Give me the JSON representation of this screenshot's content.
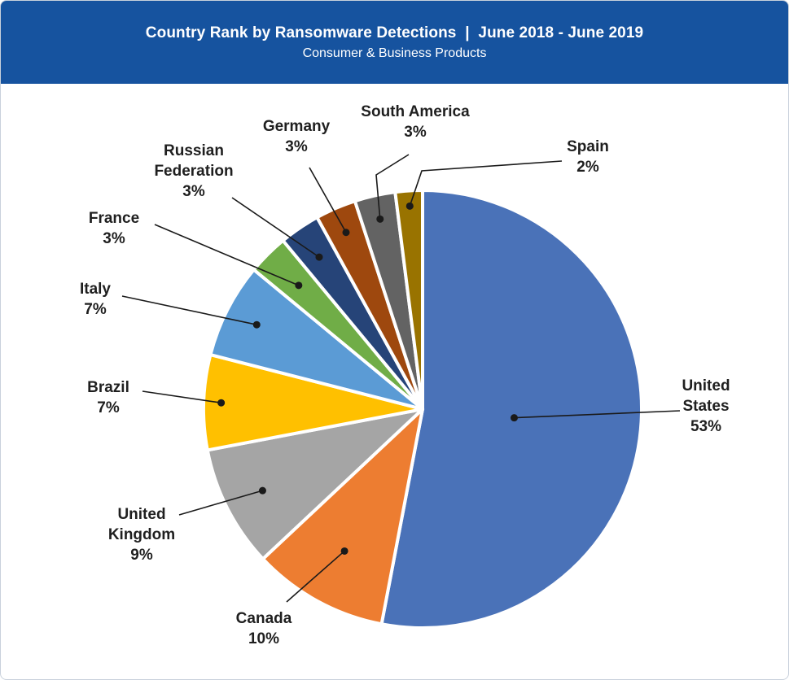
{
  "header": {
    "title": "Country Rank by Ransomware Detections  |  June 2018 - June 2019",
    "subtitle": "Consumer & Business Products"
  },
  "chart_data": {
    "type": "pie",
    "title": "Country Rank by Ransomware Detections  |  June 2018 - June 2019",
    "subtitle": "Consumer & Business Products",
    "slices": [
      {
        "label": "United States",
        "lines": [
          "United",
          "States",
          "53%"
        ],
        "value": 53,
        "color": "#4a72b8"
      },
      {
        "label": "Canada",
        "lines": [
          "Canada",
          "10%"
        ],
        "value": 10,
        "color": "#ed7d31"
      },
      {
        "label": "United Kingdom",
        "lines": [
          "United",
          "Kingdom",
          "9%"
        ],
        "value": 9,
        "color": "#a5a5a5"
      },
      {
        "label": "Brazil",
        "lines": [
          "Brazil",
          "7%"
        ],
        "value": 7,
        "color": "#ffc000"
      },
      {
        "label": "Italy",
        "lines": [
          "Italy",
          "7%"
        ],
        "value": 7,
        "color": "#5b9bd5"
      },
      {
        "label": "France",
        "lines": [
          "France",
          "3%"
        ],
        "value": 3,
        "color": "#70ad47"
      },
      {
        "label": "Russian Federation",
        "lines": [
          "Russian",
          "Federation",
          "3%"
        ],
        "value": 3,
        "color": "#264478"
      },
      {
        "label": "Germany",
        "lines": [
          "Germany",
          "3%"
        ],
        "value": 3,
        "color": "#9e480e"
      },
      {
        "label": "South America",
        "lines": [
          "South America",
          "3%"
        ],
        "value": 3,
        "color": "#636363"
      },
      {
        "label": "Spain",
        "lines": [
          "Spain",
          "2%"
        ],
        "value": 2,
        "color": "#997300"
      }
    ]
  }
}
